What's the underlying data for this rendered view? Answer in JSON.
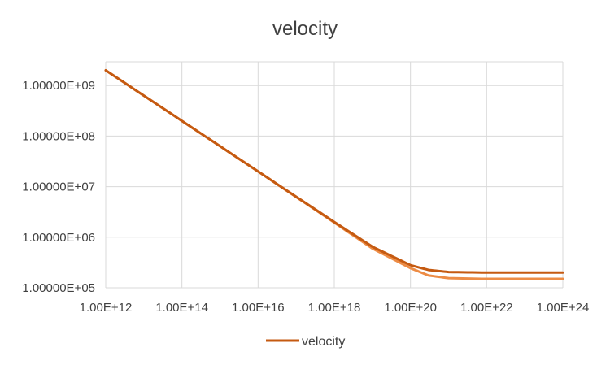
{
  "chart_data": {
    "type": "line",
    "title": "velocity",
    "xlabel": "",
    "ylabel": "",
    "x_scale": "log",
    "y_scale": "log",
    "xlim": [
      1000000000000.0,
      1e+24
    ],
    "ylim": [
      100000.0,
      1000000000.0
    ],
    "grid": true,
    "legend_position": "bottom",
    "x_tick_labels": [
      "1.00E+12",
      "1.00E+14",
      "1.00E+16",
      "1.00E+18",
      "1.00E+20",
      "1.00E+22",
      "1.00E+24"
    ],
    "y_tick_labels": [
      "1.00000E+05",
      "1.00000E+06",
      "1.00000E+07",
      "1.00000E+08",
      "1.00000E+09"
    ],
    "series": [
      {
        "name": "velocity",
        "color": "#c55a11",
        "legend": true,
        "x": [
          1000000000000.0,
          100000000000000.0,
          1e+16,
          1e+18,
          1e+19,
          1e+20,
          3e+20,
          1e+21,
          1e+22,
          1e+23,
          1e+24
        ],
        "y": [
          2000000000.0,
          200000000.0,
          20000000.0,
          2000000.0,
          650000.0,
          280000.0,
          225000.0,
          205000.0,
          200000.0,
          200000.0,
          200000.0
        ]
      },
      {
        "name": "",
        "color": "#ed8c45",
        "legend": false,
        "x": [
          1000000000000.0,
          100000000000000.0,
          1e+16,
          1e+18,
          1e+19,
          1e+20,
          3e+20,
          1e+21,
          1e+22,
          1e+23,
          1e+24
        ],
        "y": [
          2000000000.0,
          200000000.0,
          20000000.0,
          1950000.0,
          600000.0,
          245000.0,
          175000.0,
          155000.0,
          150000.0,
          150000.0,
          150000.0
        ]
      }
    ]
  }
}
